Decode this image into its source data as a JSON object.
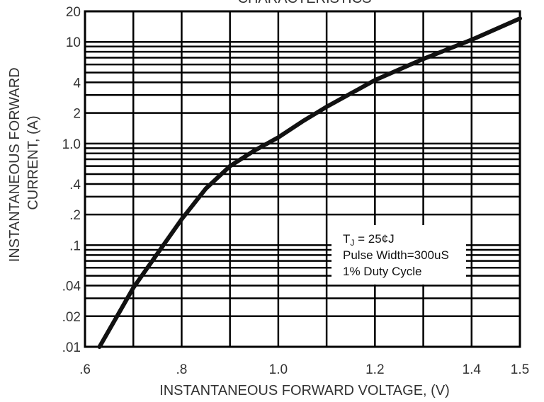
{
  "chart_data": {
    "type": "line",
    "title": "CHARACTERISTICS",
    "xlabel": "INSTANTANEOUS FORWARD VOLTAGE, (V)",
    "ylabel_lines": [
      "INSTANTANEOUS FORWARD",
      "CURRENT, (A)"
    ],
    "x_scale": "linear",
    "y_scale": "log",
    "xlim": [
      0.6,
      1.5
    ],
    "ylim": [
      0.01,
      20
    ],
    "x_ticks": [
      {
        "value": 0.6,
        "label": ".6"
      },
      {
        "value": 0.8,
        "label": ".8"
      },
      {
        "value": 1.0,
        "label": "1.0"
      },
      {
        "value": 1.2,
        "label": "1.2"
      },
      {
        "value": 1.4,
        "label": "1.4"
      },
      {
        "value": 1.5,
        "label": "1.5"
      }
    ],
    "x_gridlines": [
      0.7,
      0.8,
      0.9,
      1.0,
      1.1,
      1.2,
      1.3,
      1.4
    ],
    "y_ticks": [
      {
        "value": 0.01,
        "label": ".01"
      },
      {
        "value": 0.02,
        "label": ".02"
      },
      {
        "value": 0.04,
        "label": ".04"
      },
      {
        "value": 0.1,
        "label": ".1"
      },
      {
        "value": 0.2,
        "label": ".2"
      },
      {
        "value": 0.4,
        "label": ".4"
      },
      {
        "value": 1.0,
        "label": "1.0"
      },
      {
        "value": 2,
        "label": "2"
      },
      {
        "value": 4,
        "label": "4"
      },
      {
        "value": 10,
        "label": "10"
      },
      {
        "value": 20,
        "label": "20"
      }
    ],
    "grid": true,
    "series": [
      {
        "x": [
          0.63,
          0.7,
          0.8,
          0.85,
          0.9,
          0.95,
          1.0,
          1.05,
          1.1,
          1.2,
          1.3,
          1.4,
          1.5
        ],
        "y": [
          0.01,
          0.038,
          0.18,
          0.36,
          0.6,
          0.85,
          1.15,
          1.65,
          2.3,
          4.2,
          6.8,
          10.5,
          17
        ]
      }
    ],
    "annotation": {
      "lines": [
        {
          "main": "T",
          "sub": "J",
          "rest": " = 25¢J"
        },
        {
          "main": "Pulse Width=300uS"
        },
        {
          "main": "1% Duty Cycle"
        }
      ],
      "position": "lower-right"
    }
  }
}
